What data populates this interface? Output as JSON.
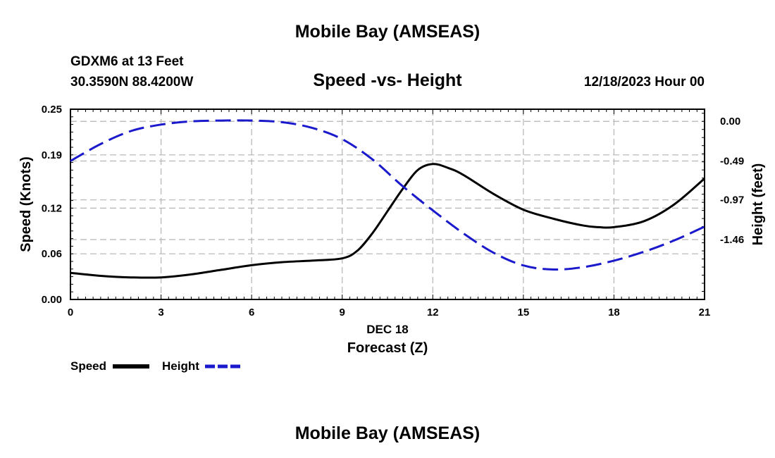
{
  "header": {
    "title": "Mobile Bay (AMSEAS)",
    "station": "GDXM6 at 13 Feet",
    "coords": "30.3590N  88.4200W",
    "subtitle": "Speed -vs- Height",
    "date": "12/18/2023 Hour 00"
  },
  "footer": {
    "title": "Mobile Bay (AMSEAS)"
  },
  "colors": {
    "speed": "#000000",
    "height": "#1a1acc",
    "grid": "#b4b4b4"
  },
  "chart_data": {
    "type": "line",
    "title": "Speed -vs- Height",
    "xlabel": "Forecast (Z)",
    "xlabel_date": "DEC 18",
    "ylabel_left": "Speed (Knots)",
    "ylabel_right": "Height (feet)",
    "xlim": [
      0,
      21
    ],
    "ylim_left": [
      0,
      0.25
    ],
    "ylim_right": [
      -2.2,
      0.15
    ],
    "x_ticks": [
      0,
      3,
      6,
      9,
      12,
      15,
      18,
      21
    ],
    "x_tick_labels": [
      "0",
      "3",
      "6",
      "9",
      "12",
      "15",
      "18",
      "21"
    ],
    "y_left_ticks": [
      0.0,
      0.06,
      0.12,
      0.19,
      0.25
    ],
    "y_left_tick_labels": [
      "0.00",
      "0.06",
      "0.12",
      "0.19",
      "0.25"
    ],
    "y_right_ticks": [
      0.0,
      -0.49,
      -0.97,
      -1.46
    ],
    "y_right_tick_labels": [
      "0.00",
      "-0.49",
      "-0.97",
      "-1.46"
    ],
    "legend": [
      "Speed",
      "Height"
    ],
    "series": [
      {
        "name": "Speed",
        "axis": "left",
        "x": [
          0,
          1,
          2,
          3,
          4,
          5,
          6,
          7,
          8,
          9,
          9.5,
          10,
          10.5,
          11,
          11.5,
          12,
          12.5,
          13,
          14,
          15,
          16,
          17,
          17.5,
          18,
          19,
          20,
          21
        ],
        "values": [
          0.035,
          0.031,
          0.029,
          0.029,
          0.033,
          0.039,
          0.045,
          0.049,
          0.051,
          0.054,
          0.064,
          0.087,
          0.116,
          0.145,
          0.17,
          0.178,
          0.173,
          0.164,
          0.139,
          0.118,
          0.106,
          0.097,
          0.095,
          0.095,
          0.103,
          0.125,
          0.159
        ]
      },
      {
        "name": "Height",
        "axis": "right",
        "x": [
          0,
          1,
          2,
          3,
          4,
          5,
          6,
          7,
          8,
          9,
          10,
          11,
          12,
          13,
          14,
          15,
          16,
          17,
          18,
          19,
          20,
          21
        ],
        "values": [
          -0.49,
          -0.28,
          -0.12,
          -0.04,
          0.0,
          0.01,
          0.01,
          -0.01,
          -0.08,
          -0.22,
          -0.47,
          -0.8,
          -1.1,
          -1.38,
          -1.62,
          -1.78,
          -1.83,
          -1.8,
          -1.72,
          -1.61,
          -1.47,
          -1.3
        ]
      }
    ]
  }
}
